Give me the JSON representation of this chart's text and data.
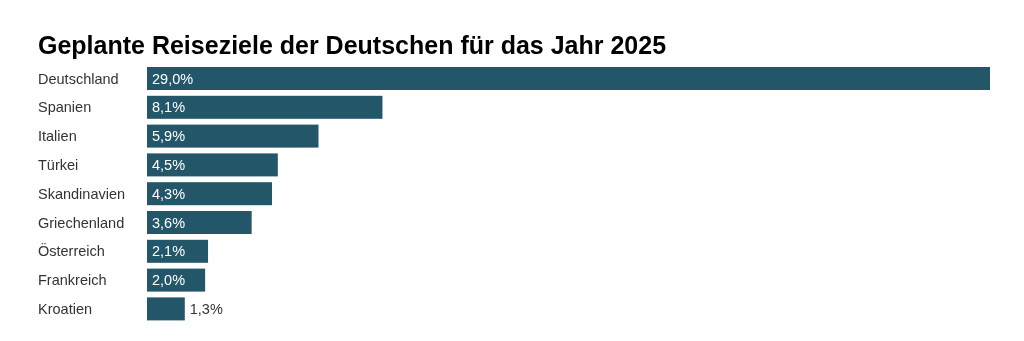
{
  "chart_data": {
    "type": "bar",
    "orientation": "horizontal",
    "title": "Geplante Reiseziele der Deutschen für das Jahr 2025",
    "categories": [
      "Deutschland",
      "Spanien",
      "Italien",
      "Türkei",
      "Skandinavien",
      "Griechenland",
      "Österreich",
      "Frankreich",
      "Kroatien"
    ],
    "values": [
      29.0,
      8.1,
      5.9,
      4.5,
      4.3,
      3.6,
      2.1,
      2.0,
      1.3
    ],
    "value_labels": [
      "29,0%",
      "8,1%",
      "5,9%",
      "4,5%",
      "4,3%",
      "3,6%",
      "2,1%",
      "2,0%",
      "1,3%"
    ],
    "color": "#235669"
  }
}
